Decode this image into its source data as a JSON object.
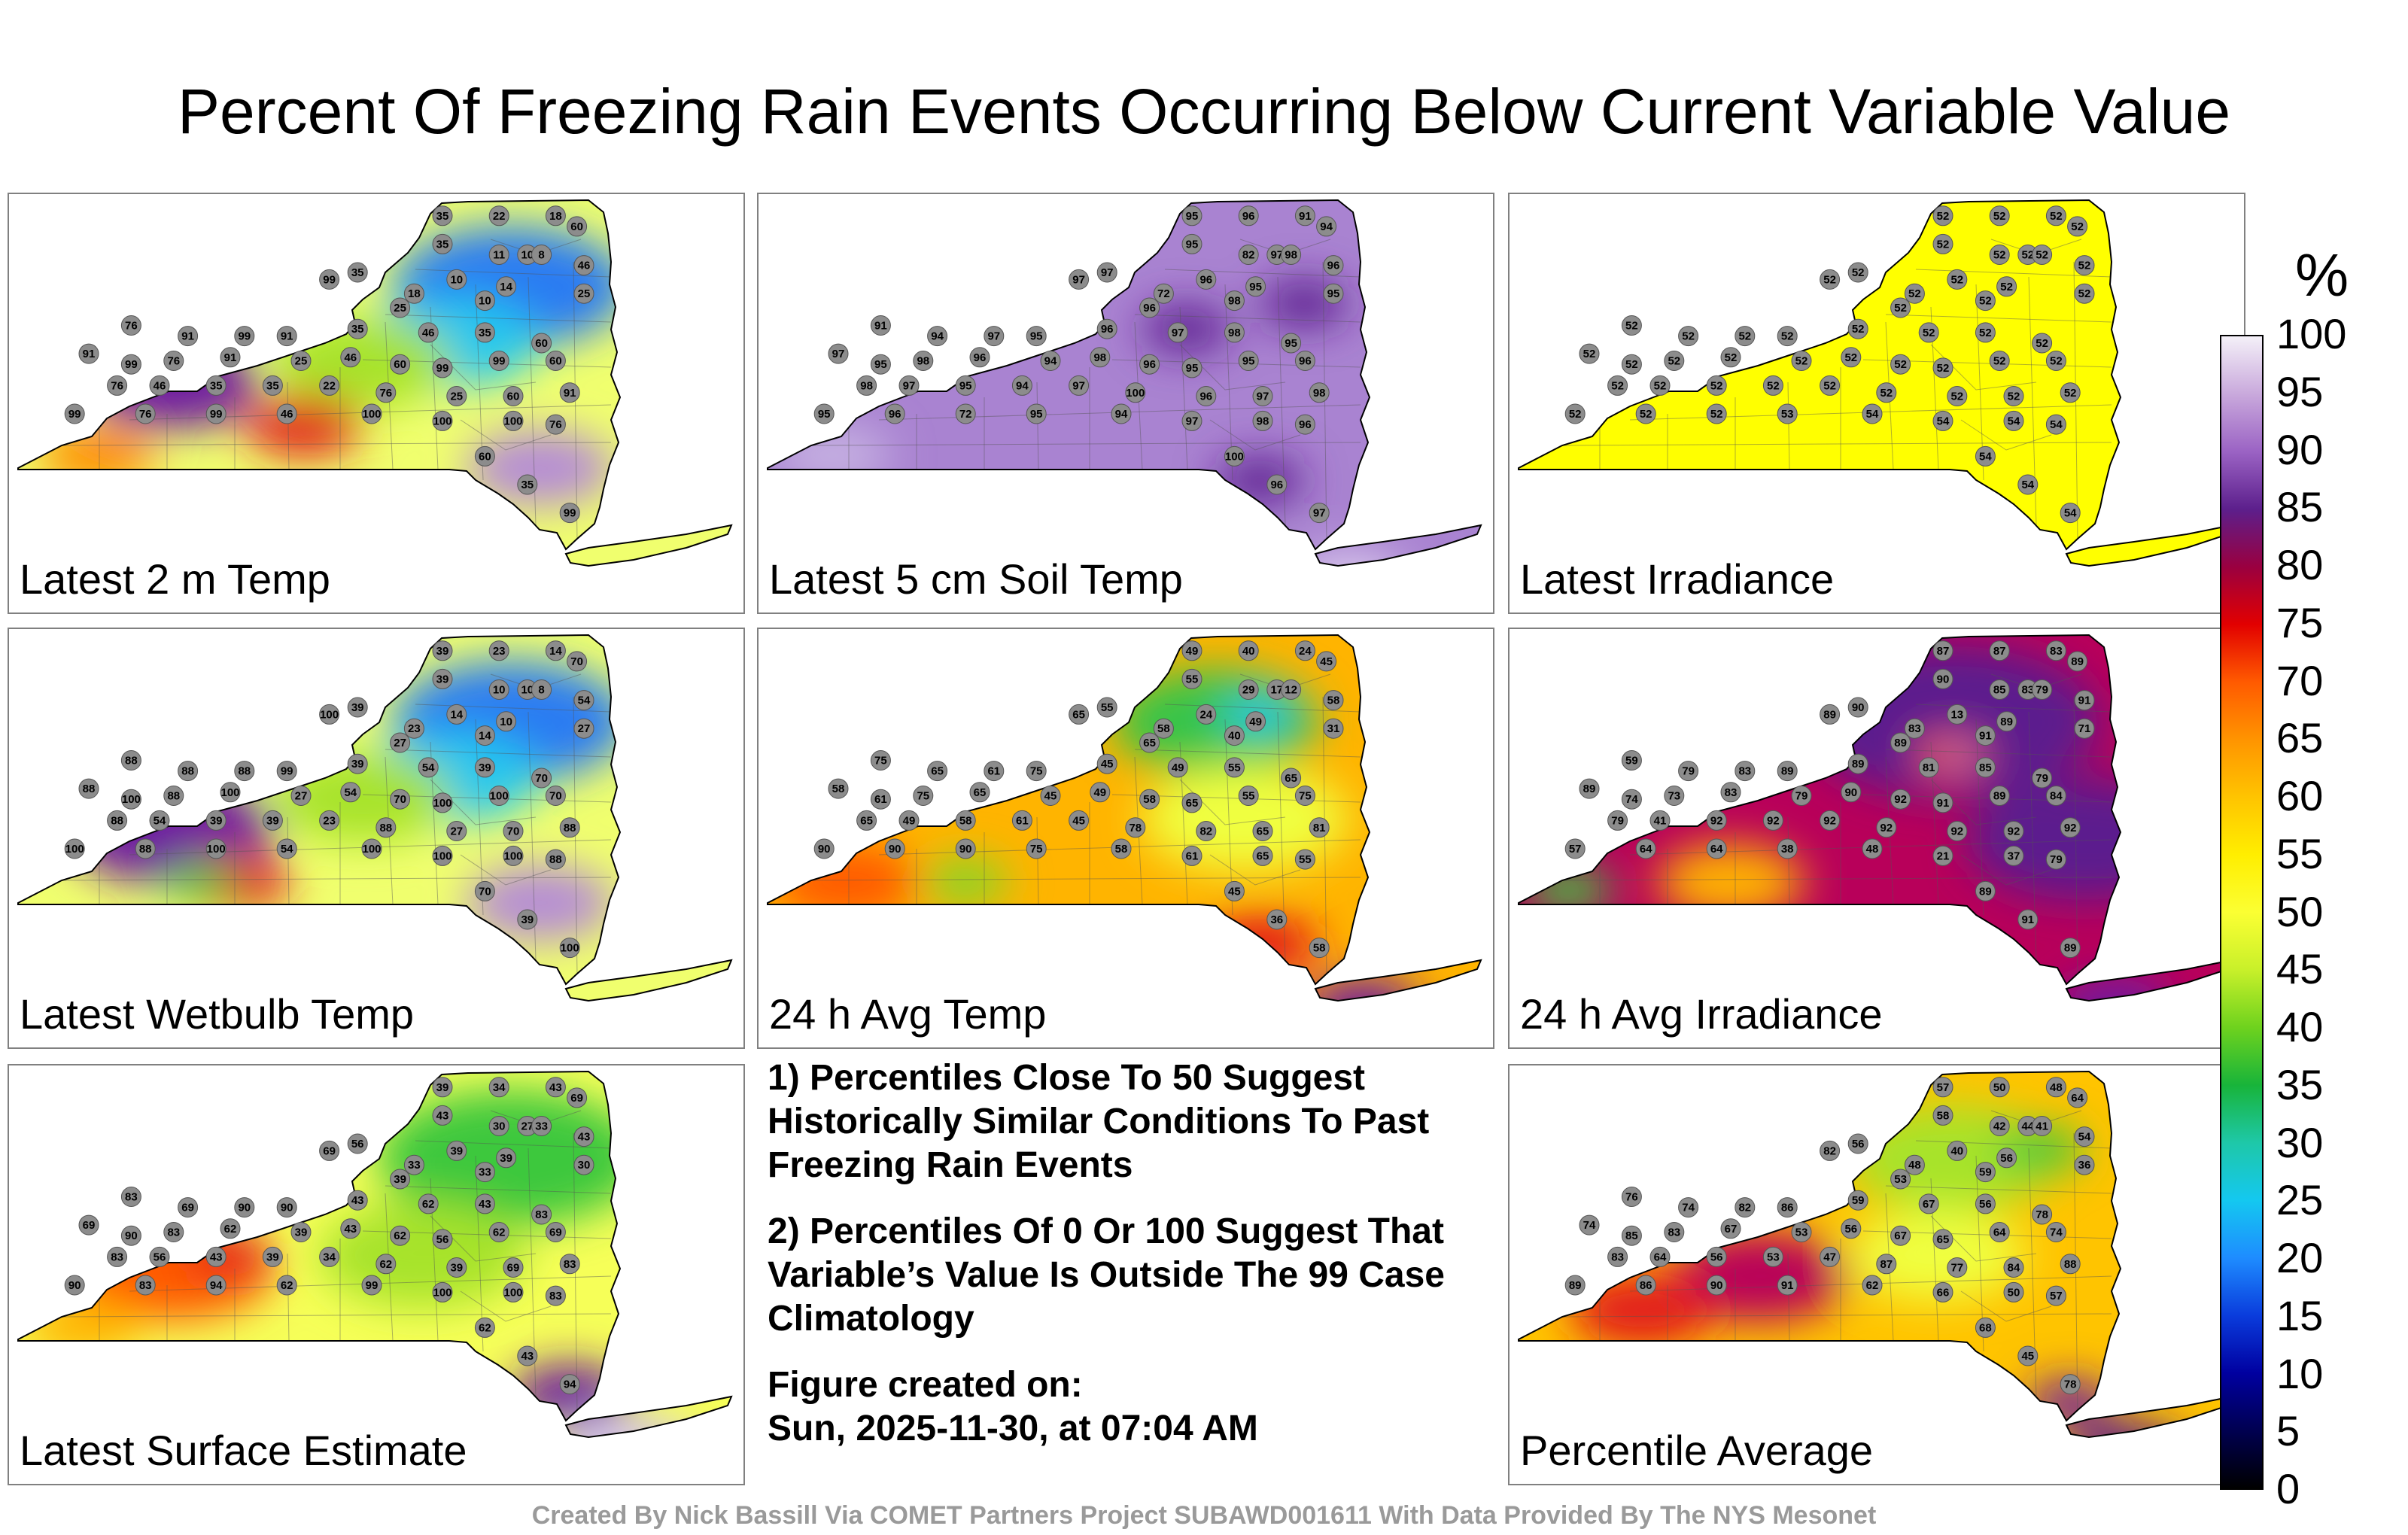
{
  "title": "Percent Of Freezing Rain Events Occurring Below Current Variable Value",
  "colorbar": {
    "unit": "%",
    "ticks": [
      "100",
      "95",
      "90",
      "85",
      "80",
      "75",
      "70",
      "65",
      "60",
      "55",
      "50",
      "45",
      "40",
      "35",
      "30",
      "25",
      "20",
      "15",
      "10",
      "5",
      "0"
    ],
    "colors": [
      "#f4f0f8",
      "#c9a9dc",
      "#9b63c4",
      "#5c1f8c",
      "#9a0040",
      "#e20000",
      "#ff5a00",
      "#ff9400",
      "#ffc400",
      "#ffee00",
      "#fbff33",
      "#c8f02a",
      "#6ed21e",
      "#18b43a",
      "#1ec8a8",
      "#14c8f0",
      "#1e8cff",
      "#0a3cdc",
      "#0000a0",
      "#000050",
      "#000000"
    ]
  },
  "panels": [
    {
      "label": "Latest 2 m Temp",
      "base": "#f0ff6e",
      "blobs": [
        [
          "#2a7cf2",
          0.68,
          0.22,
          0.16
        ],
        [
          "#27c7ee",
          0.6,
          0.35,
          0.12
        ],
        [
          "#a7e32a",
          0.48,
          0.4,
          0.12
        ],
        [
          "#6f1aa0",
          0.22,
          0.45,
          0.12
        ],
        [
          "#e21a1a",
          0.4,
          0.55,
          0.08
        ],
        [
          "#b58cd6",
          0.72,
          0.65,
          0.1
        ],
        [
          "#ff8c00",
          0.12,
          0.62,
          0.08
        ]
      ],
      "stations": [
        "35",
        "22",
        "18",
        "60",
        "35",
        "11",
        "10",
        "8",
        "46",
        "99",
        "35",
        "10",
        "25",
        "10",
        "14",
        "18",
        "76",
        "91",
        "99",
        "91",
        "35",
        "25",
        "46",
        "35",
        "60",
        "91",
        "99",
        "76",
        "91",
        "25",
        "46",
        "60",
        "99",
        "99",
        "60",
        "76",
        "46",
        "35",
        "35",
        "22",
        "76",
        "25",
        "60",
        "91",
        "99",
        "76",
        "99",
        "46",
        "100",
        "100",
        "100",
        "76",
        "60",
        "35",
        "99"
      ]
    },
    {
      "label": "Latest 5 cm Soil Temp",
      "base": "#a983d1",
      "blobs": [
        [
          "#5b1f8e",
          0.58,
          0.32,
          0.06
        ],
        [
          "#5b1f8e",
          0.74,
          0.26,
          0.06
        ],
        [
          "#c6b1e2",
          0.1,
          0.62,
          0.08
        ],
        [
          "#5b1f8e",
          0.68,
          0.68,
          0.06
        ],
        [
          "#d8c8ec",
          0.8,
          0.92,
          0.08
        ]
      ],
      "stations": [
        "95",
        "96",
        "91",
        "94",
        "95",
        "82",
        "97",
        "98",
        "96",
        "97",
        "97",
        "96",
        "95",
        "98",
        "95",
        "72",
        "91",
        "94",
        "97",
        "95",
        "96",
        "96",
        "97",
        "98",
        "95",
        "97",
        "95",
        "98",
        "96",
        "94",
        "98",
        "96",
        "95",
        "95",
        "96",
        "98",
        "97",
        "95",
        "94",
        "97",
        "100",
        "96",
        "97",
        "98",
        "95",
        "96",
        "72",
        "95",
        "94",
        "97",
        "98",
        "96",
        "100",
        "96",
        "97"
      ]
    },
    {
      "label": "Latest Irradiance",
      "base": "#ffff00",
      "blobs": [],
      "stations": [
        "52",
        "52",
        "52",
        "52",
        "52",
        "52",
        "52",
        "52",
        "52",
        "52",
        "52",
        "52",
        "52",
        "52",
        "52",
        "52",
        "52",
        "52",
        "52",
        "52",
        "52",
        "52",
        "52",
        "52",
        "52",
        "52",
        "52",
        "52",
        "52",
        "52",
        "52",
        "52",
        "52",
        "52",
        "52",
        "52",
        "52",
        "52",
        "52",
        "52",
        "52",
        "52",
        "52",
        "52",
        "52",
        "52",
        "52",
        "53",
        "54",
        "54",
        "54",
        "54",
        "54",
        "54",
        "54"
      ]
    },
    {
      "label": "Latest Wetbulb Temp",
      "base": "#f0ff6e",
      "blobs": [
        [
          "#2a7cf2",
          0.68,
          0.22,
          0.16
        ],
        [
          "#27c7ee",
          0.6,
          0.35,
          0.12
        ],
        [
          "#a7e32a",
          0.48,
          0.4,
          0.12
        ],
        [
          "#6f1aa0",
          0.22,
          0.48,
          0.14
        ],
        [
          "#e21a1a",
          0.3,
          0.6,
          0.08
        ],
        [
          "#b58cd6",
          0.72,
          0.65,
          0.1
        ],
        [
          "#3cc83c",
          0.26,
          0.6,
          0.05
        ]
      ],
      "stations": [
        "39",
        "23",
        "14",
        "70",
        "39",
        "10",
        "10",
        "8",
        "54",
        "100",
        "39",
        "14",
        "27",
        "14",
        "10",
        "23",
        "88",
        "88",
        "88",
        "99",
        "39",
        "27",
        "54",
        "39",
        "70",
        "88",
        "100",
        "88",
        "100",
        "27",
        "54",
        "70",
        "100",
        "100",
        "70",
        "88",
        "54",
        "39",
        "39",
        "23",
        "88",
        "27",
        "70",
        "88",
        "100",
        "88",
        "100",
        "54",
        "100",
        "100",
        "100",
        "88",
        "70",
        "39",
        "100"
      ]
    },
    {
      "label": "24 h Avg Temp",
      "base": "#ffb400",
      "blobs": [
        [
          "#38c44a",
          0.62,
          0.22,
          0.14
        ],
        [
          "#27c7ee",
          0.68,
          0.2,
          0.05
        ],
        [
          "#f0ff40",
          0.66,
          0.45,
          0.14
        ],
        [
          "#ff5a00",
          0.12,
          0.6,
          0.1
        ],
        [
          "#e21a1a",
          0.68,
          0.75,
          0.08
        ],
        [
          "#6f1aa0",
          0.82,
          0.9,
          0.08
        ],
        [
          "#7ed82a",
          0.28,
          0.6,
          0.06
        ]
      ],
      "stations": [
        "49",
        "40",
        "24",
        "45",
        "55",
        "29",
        "17",
        "12",
        "58",
        "65",
        "55",
        "24",
        "31",
        "40",
        "49",
        "58",
        "75",
        "65",
        "61",
        "75",
        "45",
        "65",
        "49",
        "55",
        "65",
        "58",
        "61",
        "75",
        "65",
        "45",
        "49",
        "58",
        "65",
        "55",
        "75",
        "65",
        "49",
        "58",
        "61",
        "45",
        "78",
        "82",
        "65",
        "81",
        "90",
        "90",
        "90",
        "75",
        "58",
        "61",
        "65",
        "55",
        "45",
        "36",
        "58"
      ]
    },
    {
      "label": "24 h Avg Irradiance",
      "base": "#b8005a",
      "blobs": [
        [
          "#5b1f8e",
          0.6,
          0.22,
          0.2
        ],
        [
          "#5b1f8e",
          0.78,
          0.5,
          0.16
        ],
        [
          "#ffb400",
          0.3,
          0.6,
          0.1
        ],
        [
          "#3cc83c",
          0.08,
          0.62,
          0.06
        ],
        [
          "#ff5a00",
          0.6,
          0.3,
          0.05
        ],
        [
          "#2a7cf2",
          0.61,
          0.3,
          0.02
        ],
        [
          "#6f1aa0",
          0.82,
          0.9,
          0.08
        ]
      ],
      "stations": [
        "87",
        "87",
        "83",
        "89",
        "90",
        "85",
        "83",
        "79",
        "91",
        "89",
        "90",
        "13",
        "71",
        "91",
        "89",
        "83",
        "59",
        "79",
        "83",
        "89",
        "89",
        "89",
        "81",
        "85",
        "79",
        "89",
        "74",
        "73",
        "83",
        "79",
        "90",
        "92",
        "91",
        "89",
        "84",
        "79",
        "41",
        "92",
        "92",
        "92",
        "92",
        "92",
        "92",
        "92",
        "57",
        "64",
        "64",
        "38",
        "48",
        "21",
        "37",
        "79",
        "89",
        "91",
        "89"
      ]
    },
    {
      "label": "Latest Surface Estimate",
      "base": "#f6ff58",
      "blobs": [
        [
          "#3cc83c",
          0.68,
          0.22,
          0.18
        ],
        [
          "#a7e32a",
          0.56,
          0.45,
          0.14
        ],
        [
          "#ff5a00",
          0.22,
          0.48,
          0.14
        ],
        [
          "#e21a1a",
          0.3,
          0.45,
          0.06
        ],
        [
          "#ffb400",
          0.1,
          0.62,
          0.08
        ],
        [
          "#6f1aa0",
          0.76,
          0.78,
          0.08
        ],
        [
          "#d8c8ec",
          0.84,
          0.92,
          0.1
        ]
      ],
      "stations": [
        "39",
        "34",
        "43",
        "69",
        "43",
        "30",
        "27",
        "33",
        "43",
        "69",
        "56",
        "39",
        "30",
        "33",
        "39",
        "33",
        "83",
        "69",
        "90",
        "90",
        "43",
        "39",
        "62",
        "43",
        "83",
        "69",
        "90",
        "83",
        "62",
        "39",
        "43",
        "62",
        "56",
        "62",
        "69",
        "83",
        "56",
        "43",
        "39",
        "34",
        "62",
        "39",
        "69",
        "83",
        "90",
        "83",
        "94",
        "62",
        "99",
        "100",
        "100",
        "83",
        "62",
        "43",
        "94"
      ]
    },
    {
      "label": "Percentile Average",
      "base": "#ffc400",
      "blobs": [
        [
          "#a7e32a",
          0.6,
          0.22,
          0.14
        ],
        [
          "#3cc83c",
          0.72,
          0.2,
          0.06
        ],
        [
          "#f0ff40",
          0.58,
          0.45,
          0.12
        ],
        [
          "#b8005a",
          0.34,
          0.5,
          0.12
        ],
        [
          "#e21a1a",
          0.18,
          0.58,
          0.1
        ],
        [
          "#6f1aa0",
          0.76,
          0.8,
          0.06
        ],
        [
          "#5b1f8e",
          0.84,
          0.92,
          0.08
        ]
      ],
      "stations": [
        "57",
        "50",
        "48",
        "64",
        "58",
        "42",
        "44",
        "41",
        "54",
        "82",
        "56",
        "40",
        "36",
        "59",
        "56",
        "48",
        "76",
        "74",
        "82",
        "86",
        "59",
        "53",
        "67",
        "56",
        "78",
        "74",
        "85",
        "83",
        "67",
        "53",
        "56",
        "67",
        "65",
        "64",
        "74",
        "83",
        "64",
        "56",
        "53",
        "47",
        "87",
        "77",
        "84",
        "88",
        "89",
        "86",
        "90",
        "91",
        "62",
        "66",
        "50",
        "57",
        "68",
        "45",
        "78"
      ]
    }
  ],
  "notes": {
    "note1": "1) Percentiles Close To 50 Suggest Historically Similar Conditions To Past Freezing Rain Events",
    "note2": "2) Percentiles Of 0 Or 100 Suggest That Variable’s Value Is Outside The 99 Case Climatology",
    "created_label": "Figure created on:",
    "created_value": "Sun, 2025-11-30, at 07:04 AM"
  },
  "credit": "Created By Nick Bassill Via COMET Partners Project SUBAWD001611 With Data Provided By The NYS Mesonet"
}
